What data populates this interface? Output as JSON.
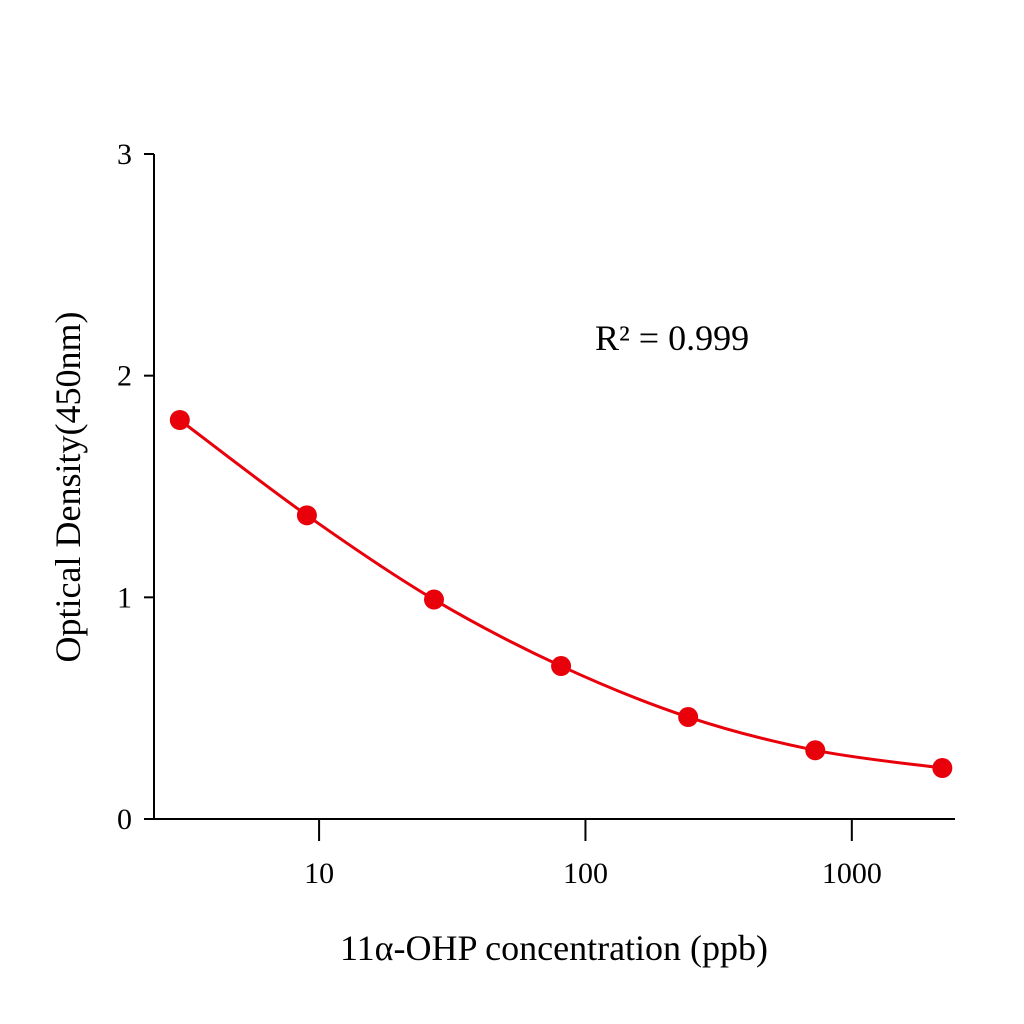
{
  "chart_data": {
    "type": "line",
    "title": "",
    "xlabel": "11α-OHP concentration (ppb)",
    "ylabel": "Optical Density(450nm)",
    "x_scale": "log",
    "xlim": [
      2.4,
      2440
    ],
    "ylim": [
      0,
      3
    ],
    "x_ticks": [
      10,
      100,
      1000
    ],
    "x_tick_labels": [
      "10",
      "100",
      "1000"
    ],
    "y_ticks": [
      0,
      1,
      2,
      3
    ],
    "y_tick_labels": [
      "0",
      "1",
      "2",
      "3"
    ],
    "grid": false,
    "annotation": "R² = 0.999",
    "series": [
      {
        "color": "#e8000b",
        "x": [
          3,
          9,
          27,
          81,
          243,
          729,
          2187
        ],
        "y": [
          1.8,
          1.37,
          0.99,
          0.69,
          0.46,
          0.31,
          0.23
        ]
      }
    ]
  }
}
